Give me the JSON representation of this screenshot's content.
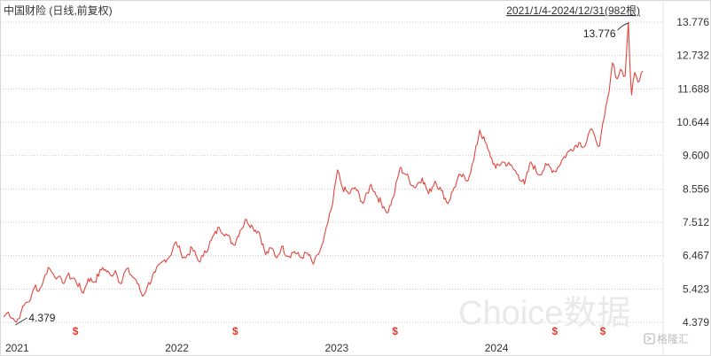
{
  "header": {
    "title": "中国财险 (日线,前复权)",
    "range": "2021/1/4-2024/12/31(982根)"
  },
  "watermark": {
    "text": "Choice数据",
    "logo_text": "格隆汇",
    "logo_icon": "gelonghui-logo-icon"
  },
  "colors": {
    "line": "#e2473e",
    "grid": "#c8c8c8",
    "axis_text": "#333333",
    "marker": "#e23b30",
    "watermark": "#e9e9e9"
  },
  "chart_data": {
    "type": "line",
    "title": "中国财险 (日线,前复权)",
    "xlabel": "",
    "ylabel": "",
    "grid": true,
    "ylim": [
      4.379,
      13.776
    ],
    "y_ticks": [
      "13.776",
      "12.732",
      "11.688",
      "10.644",
      "9.600",
      "8.556",
      "7.512",
      "6.467",
      "5.423",
      "4.379"
    ],
    "x_ticks": [
      {
        "label": "2021",
        "x": 2021.0
      },
      {
        "label": "2022",
        "x": 2022.0
      },
      {
        "label": "2023",
        "x": 2023.0
      },
      {
        "label": "2024",
        "x": 2024.0
      }
    ],
    "xlim": [
      2021.0,
      2025.0
    ],
    "annotations": [
      {
        "label": "4.379",
        "x": 2021.08,
        "y": 4.379
      },
      {
        "label": "13.776",
        "x": 2024.92,
        "y": 13.776
      }
    ],
    "dividend_markers": {
      "symbol": "$",
      "x": [
        2021.45,
        2022.45,
        2023.45,
        2024.45,
        2024.75
      ]
    },
    "series": [
      {
        "name": "",
        "x": [
          2021.0,
          2021.03,
          2021.06,
          2021.08,
          2021.11,
          2021.14,
          2021.17,
          2021.2,
          2021.22,
          2021.25,
          2021.28,
          2021.31,
          2021.34,
          2021.37,
          2021.4,
          2021.45,
          2021.5,
          2021.53,
          2021.57,
          2021.62,
          2021.67,
          2021.7,
          2021.73,
          2021.77,
          2021.8,
          2021.83,
          2021.87,
          2021.9,
          2021.95,
          2022.0,
          2022.04,
          2022.08,
          2022.11,
          2022.14,
          2022.18,
          2022.22,
          2022.25,
          2022.3,
          2022.35,
          2022.4,
          2022.44,
          2022.48,
          2022.52,
          2022.56,
          2022.6,
          2022.64,
          2022.68,
          2022.71,
          2022.74,
          2022.78,
          2022.82,
          2022.86,
          2022.9,
          2022.94,
          2022.97,
          2023.0,
          2023.03,
          2023.06,
          2023.09,
          2023.12,
          2023.16,
          2023.2,
          2023.25,
          2023.3,
          2023.34,
          2023.38,
          2023.4,
          2023.44,
          2023.48,
          2023.52,
          2023.57,
          2023.62,
          2023.66,
          2023.7,
          2023.74,
          2023.78,
          2023.82,
          2023.86,
          2023.9,
          2023.94,
          2023.98,
          2024.03,
          2024.08,
          2024.12,
          2024.17,
          2024.22,
          2024.26,
          2024.3,
          2024.35,
          2024.4,
          2024.45,
          2024.5,
          2024.55,
          2024.6,
          2024.64,
          2024.67,
          2024.7,
          2024.73,
          2024.76,
          2024.79,
          2024.81,
          2024.84,
          2024.86,
          2024.89,
          2024.91,
          2024.92,
          2024.93,
          2024.95,
          2024.97,
          2025.0
        ],
        "y": [
          4.55,
          4.7,
          4.5,
          4.379,
          4.7,
          5.0,
          5.1,
          5.55,
          5.35,
          5.7,
          6.1,
          5.9,
          5.8,
          5.6,
          5.85,
          5.7,
          5.3,
          5.75,
          5.65,
          6.1,
          5.85,
          6.0,
          5.6,
          6.05,
          5.85,
          5.7,
          5.2,
          5.5,
          5.95,
          6.3,
          6.45,
          6.9,
          6.55,
          6.4,
          6.7,
          6.3,
          6.45,
          6.95,
          7.35,
          7.1,
          6.8,
          7.25,
          7.6,
          7.35,
          7.2,
          6.5,
          6.7,
          6.4,
          6.75,
          6.45,
          6.6,
          6.4,
          6.55,
          6.2,
          6.5,
          6.9,
          7.5,
          8.1,
          9.15,
          8.6,
          8.4,
          8.6,
          8.1,
          8.7,
          8.3,
          8.0,
          7.8,
          8.3,
          9.2,
          9.0,
          8.6,
          8.9,
          8.4,
          8.8,
          8.5,
          8.1,
          8.6,
          9.0,
          8.8,
          9.4,
          10.4,
          9.8,
          9.2,
          9.4,
          9.3,
          9.0,
          8.7,
          9.4,
          9.0,
          9.3,
          9.1,
          9.5,
          9.8,
          10.0,
          9.9,
          10.4,
          10.2,
          9.9,
          10.8,
          11.6,
          12.5,
          12.0,
          12.3,
          12.1,
          13.776,
          12.4,
          11.5,
          12.2,
          11.9,
          12.25
        ]
      }
    ]
  }
}
